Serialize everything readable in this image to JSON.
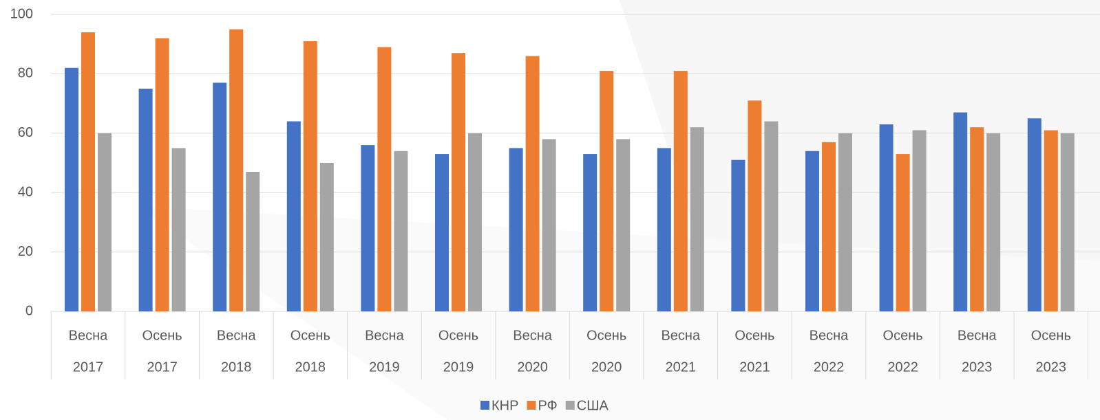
{
  "chart_data": {
    "type": "bar",
    "categories": [
      [
        "Весна",
        "2017"
      ],
      [
        "Осень",
        "2017"
      ],
      [
        "Весна",
        "2018"
      ],
      [
        "Осень",
        "2018"
      ],
      [
        "Весна",
        "2019"
      ],
      [
        "Осень",
        "2019"
      ],
      [
        "Весна",
        "2020"
      ],
      [
        "Осень",
        "2020"
      ],
      [
        "Весна",
        "2021"
      ],
      [
        "Осень",
        "2021"
      ],
      [
        "Весна",
        "2022"
      ],
      [
        "Осень",
        "2022"
      ],
      [
        "Весна",
        "2023"
      ],
      [
        "Осень",
        "2023"
      ]
    ],
    "series": [
      {
        "name": "КНР",
        "color": "#4472c4",
        "values": [
          82,
          75,
          77,
          64,
          56,
          53,
          55,
          53,
          55,
          51,
          54,
          63,
          67,
          65
        ]
      },
      {
        "name": "РФ",
        "color": "#ed7d31",
        "values": [
          94,
          92,
          95,
          91,
          89,
          87,
          86,
          81,
          81,
          71,
          57,
          53,
          62,
          61
        ]
      },
      {
        "name": "США",
        "color": "#a5a5a5",
        "values": [
          60,
          55,
          47,
          50,
          54,
          60,
          58,
          58,
          62,
          64,
          60,
          61,
          60,
          60
        ]
      }
    ],
    "ylim": [
      0,
      100
    ],
    "yticks": [
      0,
      20,
      40,
      60,
      80,
      100
    ],
    "grid": true,
    "legend": "bottom"
  }
}
